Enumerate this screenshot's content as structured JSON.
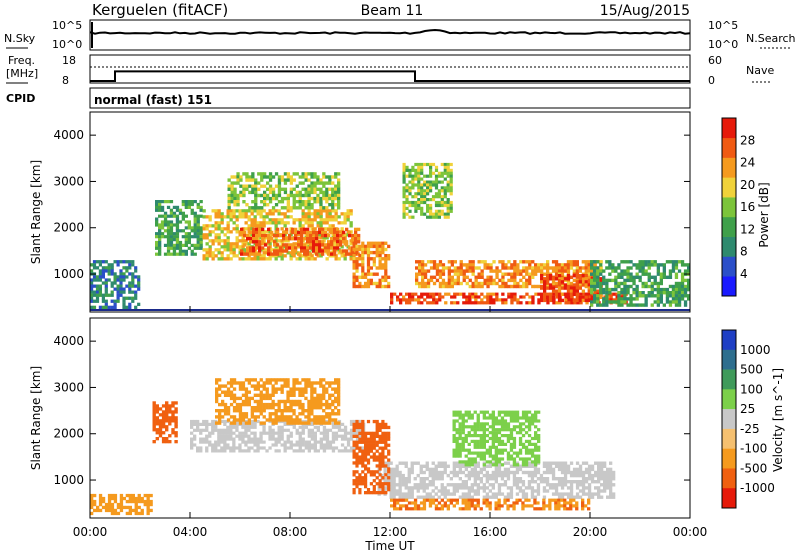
{
  "header": {
    "radar": "Kerguelen (fitACF)",
    "beam": "Beam 11",
    "date": "15/Aug/2015"
  },
  "noise_panel": {
    "left_label": "N.Sky",
    "right_label": "N.Search",
    "left_ticks": [
      "10^5",
      "10^0"
    ],
    "right_ticks": [
      "10^5",
      "10^0"
    ]
  },
  "freq_panel": {
    "left_label_line1": "Freq.",
    "left_label_line2": "[MHz]",
    "right_label": "Nave",
    "left_ticks": [
      "18",
      "8"
    ],
    "right_ticks": [
      "60",
      "0"
    ],
    "freq_series": [
      {
        "t": 0.0,
        "mhz": 8
      },
      {
        "t": 1.0,
        "mhz": 8
      },
      {
        "t": 1.0,
        "mhz": 12
      },
      {
        "t": 13.0,
        "mhz": 12
      },
      {
        "t": 13.0,
        "mhz": 8
      },
      {
        "t": 24.0,
        "mhz": 8
      }
    ],
    "nave_level": 35
  },
  "cpid": {
    "label": "CPID",
    "program": "normal (fast) 151"
  },
  "x_axis": {
    "label": "Time UT",
    "ticks": [
      "00:00",
      "04:00",
      "08:00",
      "12:00",
      "16:00",
      "20:00",
      "00:00"
    ]
  },
  "y_axis_label": "Slant Range [km]",
  "y_ticks": [
    "4000",
    "3000",
    "2000",
    "1000"
  ],
  "power_colorbar": {
    "label": "Power [dB]",
    "ticks": [
      "28",
      "24",
      "20",
      "16",
      "12",
      "8",
      "4"
    ],
    "colors": [
      "#1a1aff",
      "#2b4fc9",
      "#2e8a6e",
      "#3fa04a",
      "#7cc43a",
      "#f0d23a",
      "#f59a1e",
      "#f05a12",
      "#e61a0a"
    ]
  },
  "velocity_colorbar": {
    "label": "Velocity [m s^-1]",
    "ticks": [
      "1000",
      "500",
      "100",
      "25",
      "-25",
      "-100",
      "-500",
      "-1000"
    ],
    "colors": [
      "#1f3fc4",
      "#2e6e8e",
      "#3f9a5a",
      "#7cd04a",
      "#c8c8c8",
      "#f5c070",
      "#f59a1e",
      "#f06010",
      "#e61a0a"
    ]
  },
  "chart_data": {
    "type": "heatmap",
    "description_series": "Range-time intensity plots for one radar beam",
    "x_range_hours": [
      0,
      24
    ],
    "y_range_km": [
      180,
      4500
    ],
    "power_panel": {
      "bands": [
        {
          "t0": 2.6,
          "t1": 4.5,
          "r0": 1400,
          "r1": 2600,
          "level": 12
        },
        {
          "t0": 4.5,
          "t1": 10.5,
          "r0": 1300,
          "r1": 2400,
          "level": 20
        },
        {
          "t0": 6.0,
          "t1": 10.8,
          "r0": 1400,
          "r1": 2000,
          "level": 26
        },
        {
          "t0": 10.5,
          "t1": 12.0,
          "r0": 700,
          "r1": 1700,
          "level": 24
        },
        {
          "t0": 12.0,
          "t1": 21.5,
          "r0": 350,
          "r1": 600,
          "level": 28
        },
        {
          "t0": 13.0,
          "t1": 20.5,
          "r0": 700,
          "r1": 1300,
          "level": 24
        },
        {
          "t0": 18.0,
          "t1": 20.5,
          "r0": 400,
          "r1": 1000,
          "level": 28
        },
        {
          "t0": 12.5,
          "t1": 14.5,
          "r0": 2200,
          "r1": 3400,
          "level": 16
        },
        {
          "t0": 0.0,
          "t1": 2.0,
          "r0": 250,
          "r1": 1300,
          "level": 8
        },
        {
          "t0": 20.0,
          "t1": 24.0,
          "r0": 300,
          "r1": 1300,
          "level": 12
        },
        {
          "t0": 5.5,
          "t1": 10.0,
          "r0": 2400,
          "r1": 3200,
          "level": 16
        }
      ]
    },
    "velocity_panel": {
      "bands": [
        {
          "t0": 4.0,
          "t1": 11.0,
          "r0": 1600,
          "r1": 2300,
          "level": 0
        },
        {
          "t0": 11.5,
          "t1": 21.0,
          "r0": 600,
          "r1": 1400,
          "level": 0
        },
        {
          "t0": 12.0,
          "t1": 20.0,
          "r0": 350,
          "r1": 600,
          "level": -300
        },
        {
          "t0": 10.5,
          "t1": 12.0,
          "r0": 700,
          "r1": 2300,
          "level": -500
        },
        {
          "t0": 0.0,
          "t1": 2.5,
          "r0": 250,
          "r1": 700,
          "level": -100
        },
        {
          "t0": 5.0,
          "t1": 10.0,
          "r0": 2200,
          "r1": 3200,
          "level": -100
        },
        {
          "t0": 14.5,
          "t1": 18.0,
          "r0": 1300,
          "r1": 2500,
          "level": 50
        },
        {
          "t0": 2.5,
          "t1": 3.5,
          "r0": 1800,
          "r1": 2700,
          "level": -600
        }
      ]
    }
  }
}
